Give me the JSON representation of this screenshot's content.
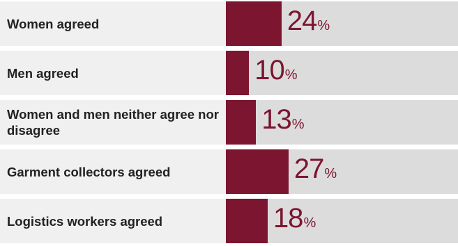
{
  "colors": {
    "bar": "#7b1530",
    "track": "#dcdcdc",
    "row_background": "#f0f0f0",
    "label_text": "#222222"
  },
  "chart_data": {
    "type": "bar",
    "orientation": "horizontal",
    "categories": [
      "Women agreed",
      "Men agreed",
      "Women and men neither agree nor disagree",
      "Garment collectors agreed",
      "Logistics workers agreed"
    ],
    "values": [
      24,
      10,
      13,
      27,
      18
    ],
    "unit": "%",
    "xlim": [
      0,
      100
    ],
    "title": "",
    "xlabel": "",
    "ylabel": ""
  }
}
